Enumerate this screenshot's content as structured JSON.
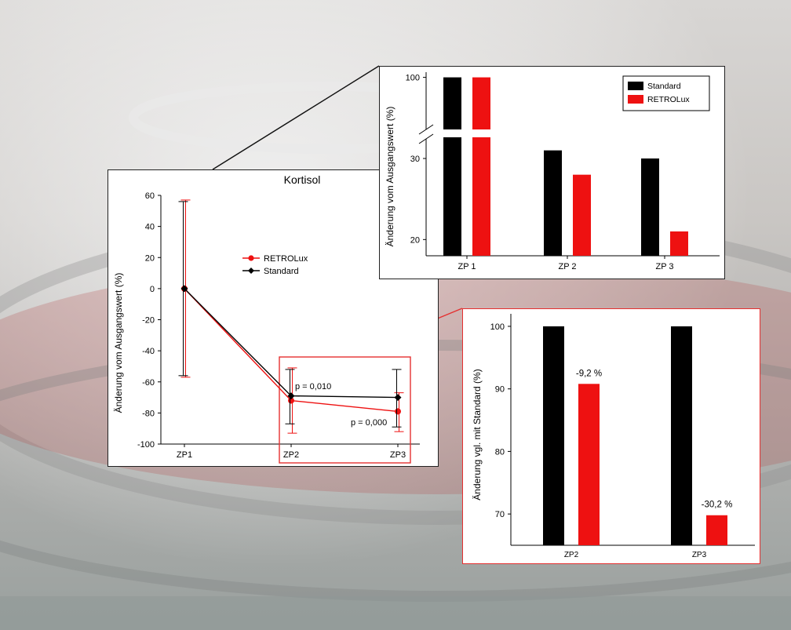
{
  "colors": {
    "standard": "#000000",
    "retrolux": "#ee1111",
    "highlight_frame": "#e53030"
  },
  "chart_data": [
    {
      "type": "line",
      "title": "Kortisol",
      "xlabel": "",
      "ylabel": "Änderung vom Ausgangswert (%)",
      "categories": [
        "ZP1",
        "ZP2",
        "ZP3"
      ],
      "yticks": [
        "60",
        "40",
        "20",
        "0",
        "-20",
        "-40",
        "-60",
        "-80",
        "-100"
      ],
      "ylim": [
        -100,
        60
      ],
      "legend_position": "top-right",
      "series": [
        {
          "name": "RETROLux",
          "values": [
            0,
            -72,
            -79
          ],
          "error_low": [
            -57,
            -93,
            -92
          ],
          "error_high": [
            57,
            -51,
            -67
          ],
          "marker": "circle"
        },
        {
          "name": "Standard",
          "values": [
            0,
            -69,
            -70
          ],
          "error_low": [
            -56,
            -87,
            -89
          ],
          "error_high": [
            56,
            -52,
            -52
          ],
          "marker": "diamond"
        }
      ],
      "annotations": [
        "p = 0,010",
        "p = 0,000"
      ]
    },
    {
      "type": "bar",
      "xlabel": "",
      "ylabel": "Änderung vom Ausgangswert (%)",
      "categories": [
        "ZP 1",
        "ZP 2",
        "ZP 3"
      ],
      "yticks": [
        "100",
        "30",
        "20"
      ],
      "axis_break": true,
      "legend_position": "top-right",
      "series": [
        {
          "name": "Standard",
          "values": [
            100,
            31,
            30
          ]
        },
        {
          "name": "RETROLux",
          "values": [
            100,
            28,
            21
          ]
        }
      ]
    },
    {
      "type": "bar",
      "xlabel": "",
      "ylabel": "Änderung vgl. mit Standard (%)",
      "categories": [
        "ZP2",
        "ZP3"
      ],
      "yticks": [
        "100",
        "90",
        "80",
        "70"
      ],
      "ylim": [
        65,
        102
      ],
      "series": [
        {
          "name": "Standard",
          "values": [
            100,
            100
          ]
        },
        {
          "name": "RETROLux",
          "values": [
            90.8,
            69.8
          ]
        }
      ],
      "data_labels": [
        "-9,2 %",
        "-30,2 %"
      ]
    }
  ]
}
